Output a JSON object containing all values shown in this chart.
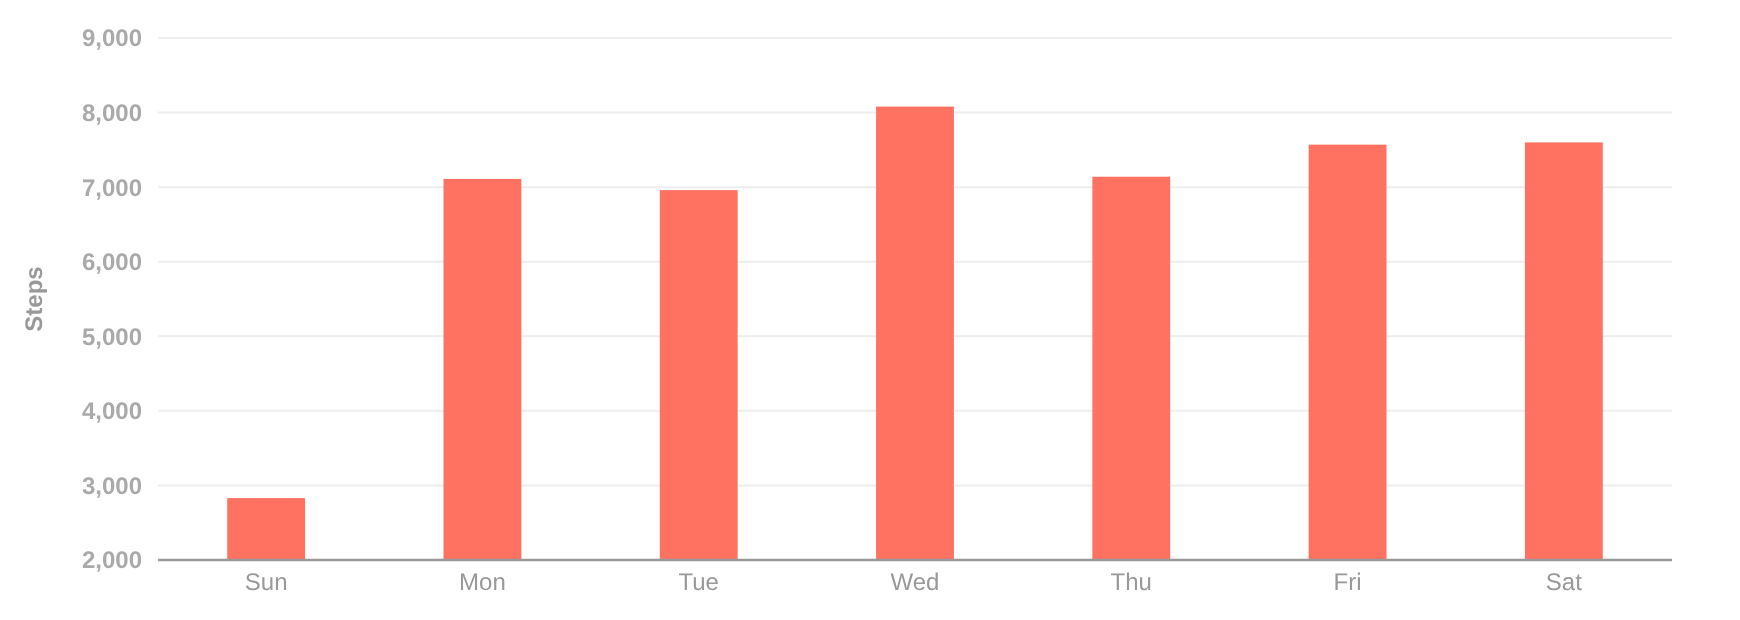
{
  "chart_data": {
    "type": "bar",
    "ylabel": "Steps",
    "categories": [
      "Sun",
      "Mon",
      "Tue",
      "Wed",
      "Thu",
      "Fri",
      "Sat"
    ],
    "values": [
      2830,
      7110,
      6960,
      8080,
      7140,
      7570,
      7600
    ],
    "color": "#ff7262",
    "ylim": [
      2000,
      9000
    ],
    "yticks": [
      {
        "value": 2000,
        "label": "2,000"
      },
      {
        "value": 3000,
        "label": "3,000"
      },
      {
        "value": 4000,
        "label": "4,000"
      },
      {
        "value": 5000,
        "label": "5,000"
      },
      {
        "value": 6000,
        "label": "6,000"
      },
      {
        "value": 7000,
        "label": "7,000"
      },
      {
        "value": 8000,
        "label": "8,000"
      },
      {
        "value": 9000,
        "label": "9,000"
      }
    ],
    "grid": "y"
  }
}
